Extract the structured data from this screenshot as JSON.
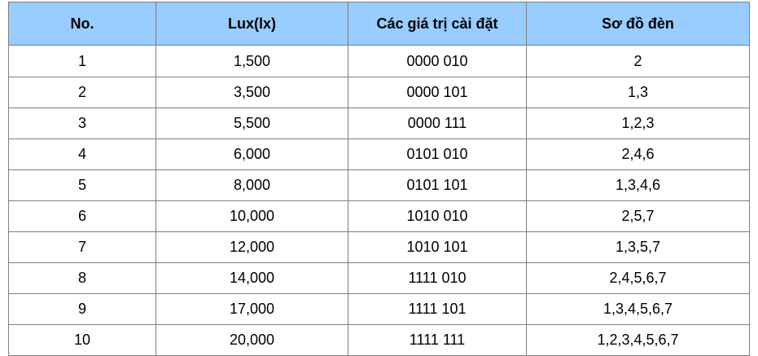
{
  "table": {
    "headers": [
      "No.",
      "Lux(lx)",
      "Các giá trị cài đặt",
      "Sơ đồ đèn"
    ],
    "rows": [
      [
        "1",
        "1,500",
        "0000 010",
        "2"
      ],
      [
        "2",
        "3,500",
        "0000 101",
        "1,3"
      ],
      [
        "3",
        "5,500",
        "0000 111",
        "1,2,3"
      ],
      [
        "4",
        "6,000",
        "0101 010",
        "2,4,6"
      ],
      [
        "5",
        "8,000",
        "0101 101",
        "1,3,4,6"
      ],
      [
        "6",
        "10,000",
        "1010 010",
        "2,5,7"
      ],
      [
        "7",
        "12,000",
        "1010 101",
        "1,3,5,7"
      ],
      [
        "8",
        "14,000",
        "1111 010",
        "2,4,5,6,7"
      ],
      [
        "9",
        "17,000",
        "1111 101",
        "1,3,4,5,6,7"
      ],
      [
        "10",
        "20,000",
        "1111 111",
        "1,2,3,4,5,6,7"
      ]
    ]
  },
  "colors": {
    "header_bg": "#99ccff",
    "border": "#7f7f7f",
    "text": "#000000"
  }
}
